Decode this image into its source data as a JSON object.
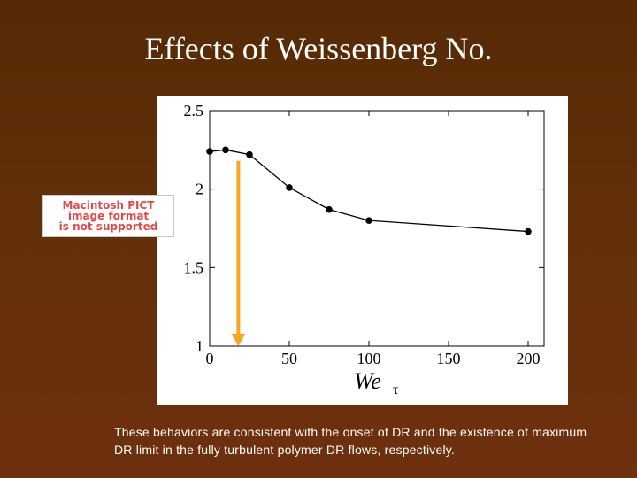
{
  "slide": {
    "title": "Effects of Weissenberg No.",
    "caption": "These behaviors are consistent with the onset of DR and the existence of maximum DR limit in the fully turbulent polymer DR flows, respectively.",
    "placeholder_lines": [
      "Macintosh PICT",
      "image format",
      "is not supported"
    ]
  },
  "colors": {
    "background": "#5c2c08",
    "title_text": "#ffffff",
    "arrow": "#f5a623",
    "placeholder_text": "#e24a4a",
    "series": "#000000"
  },
  "chart_data": {
    "type": "line",
    "title": "",
    "xlabel": "We",
    "xlabel_subscript": "τ",
    "ylabel": "",
    "xlim": [
      0,
      210
    ],
    "ylim": [
      1,
      2.5
    ],
    "xticks": [
      0,
      50,
      100,
      150,
      200
    ],
    "xtick_labels": [
      "0",
      "50",
      "100",
      "150",
      "200"
    ],
    "yticks": [
      1,
      1.5,
      2,
      2.5
    ],
    "ytick_labels": [
      "1",
      "1.5",
      "2",
      "2.5"
    ],
    "grid": false,
    "series": [
      {
        "x": [
          0,
          10,
          25,
          50,
          75,
          100,
          200
        ],
        "y": [
          2.24,
          2.25,
          2.22,
          2.01,
          1.87,
          1.8,
          1.73
        ]
      }
    ],
    "annotation": {
      "type": "arrow",
      "direction": "down",
      "x": 18,
      "y_from": 2.18,
      "y_to": 1
    }
  }
}
